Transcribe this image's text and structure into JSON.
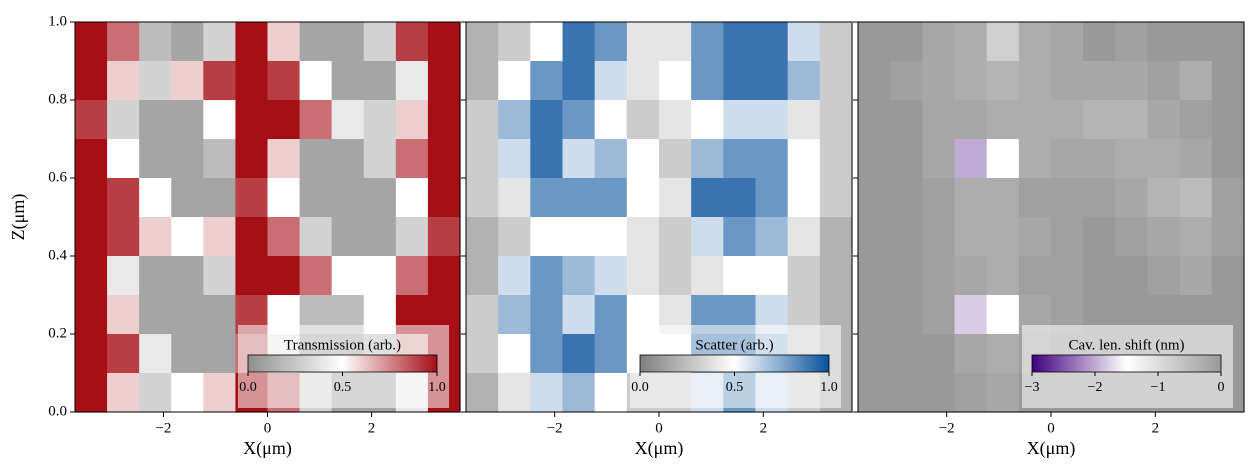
{
  "chart_data": [
    {
      "type": "heatmap",
      "xlabel": "X(μm)",
      "ylabel": "Z(μm)",
      "xlim": [
        -3.7,
        3.7
      ],
      "ylim": [
        0,
        1
      ],
      "xticks": [
        {
          "value": -2,
          "label": "−2"
        },
        0,
        2
      ],
      "yticks": [
        {
          "value": 0,
          "label": "0.0"
        },
        {
          "value": 0.2,
          "label": "0.2"
        },
        {
          "value": 0.4,
          "label": "0.4"
        },
        {
          "value": 0.6,
          "label": "0.6"
        },
        {
          "value": 0.8,
          "label": "0.8"
        },
        {
          "value": 1,
          "label": "1.0"
        }
      ],
      "cmap": [
        "#8f8f8f",
        "#ffffff",
        "#a50f15"
      ],
      "colorbar": {
        "label": "Transmission (arb.)",
        "clim": [
          0,
          1
        ],
        "ticks": [
          {
            "value": 0,
            "label": "0.0"
          },
          0.5,
          {
            "value": 1,
            "label": "1.0"
          }
        ]
      },
      "z": [
        [
          1,
          0.8,
          0.2,
          0.1,
          0.3,
          1,
          0.6,
          0.1,
          0.1,
          0.3,
          0.9,
          1
        ],
        [
          1,
          0.6,
          0.3,
          0.6,
          0.9,
          1,
          0.9,
          0.5,
          0.1,
          0.1,
          0.4,
          1
        ],
        [
          0.9,
          0.3,
          0.1,
          0.1,
          0.5,
          1,
          1,
          0.8,
          0.4,
          0.3,
          0.6,
          1
        ],
        [
          1,
          0.5,
          0.1,
          0.1,
          0.2,
          1,
          0.6,
          0.1,
          0.1,
          0.3,
          0.8,
          1
        ],
        [
          1,
          0.9,
          0.5,
          0.1,
          0.1,
          0.9,
          0.5,
          0.1,
          0.1,
          0.1,
          0.5,
          1
        ],
        [
          1,
          0.9,
          0.6,
          0.5,
          0.6,
          1,
          0.8,
          0.3,
          0.1,
          0.1,
          0.3,
          0.9
        ],
        [
          1,
          0.4,
          0.1,
          0.1,
          0.3,
          1,
          1,
          0.8,
          0.5,
          0.5,
          0.8,
          1
        ],
        [
          1,
          0.6,
          0.1,
          0.1,
          0.1,
          0.9,
          0.5,
          0.2,
          0.2,
          0.5,
          1,
          1
        ],
        [
          1,
          0.9,
          0.4,
          0.1,
          0.1,
          0.8,
          0.4,
          0.1,
          0.1,
          0.2,
          0.7,
          1
        ],
        [
          1,
          0.6,
          0.3,
          0.5,
          0.6,
          1,
          0.8,
          0.3,
          0.1,
          0.1,
          0.4,
          1
        ]
      ]
    },
    {
      "type": "heatmap",
      "xlabel": "X(μm)",
      "xlim": [
        -3.7,
        3.7
      ],
      "ylim": [
        0,
        1
      ],
      "xticks": [
        {
          "value": -2,
          "label": "−2"
        },
        0,
        2
      ],
      "yticks": [
        0,
        0.2,
        0.4,
        0.6,
        0.8,
        1
      ],
      "cmap": [
        "#7f7f7f",
        "#ffffff",
        "#08519c"
      ],
      "colorbar": {
        "label": "Scatter (arb.)",
        "clim": [
          0,
          1
        ],
        "ticks": [
          {
            "value": 0,
            "label": "0.0"
          },
          0.5,
          {
            "value": 1,
            "label": "1.0"
          }
        ]
      },
      "z": [
        [
          0.2,
          0.3,
          0.5,
          0.9,
          0.8,
          0.4,
          0.4,
          0.8,
          0.9,
          0.9,
          0.6,
          0.3
        ],
        [
          0.2,
          0.5,
          0.8,
          0.9,
          0.6,
          0.4,
          0.5,
          0.8,
          0.9,
          0.9,
          0.7,
          0.3
        ],
        [
          0.3,
          0.7,
          0.9,
          0.8,
          0.5,
          0.3,
          0.4,
          0.5,
          0.6,
          0.6,
          0.4,
          0.3
        ],
        [
          0.3,
          0.6,
          0.9,
          0.6,
          0.7,
          0.5,
          0.3,
          0.7,
          0.8,
          0.8,
          0.5,
          0.3
        ],
        [
          0.3,
          0.4,
          0.8,
          0.8,
          0.8,
          0.5,
          0.4,
          0.9,
          0.9,
          0.8,
          0.5,
          0.3
        ],
        [
          0.2,
          0.3,
          0.5,
          0.5,
          0.5,
          0.4,
          0.3,
          0.6,
          0.8,
          0.7,
          0.4,
          0.2
        ],
        [
          0.2,
          0.6,
          0.8,
          0.7,
          0.6,
          0.4,
          0.3,
          0.4,
          0.5,
          0.5,
          0.3,
          0.2
        ],
        [
          0.3,
          0.7,
          0.8,
          0.6,
          0.8,
          0.5,
          0.4,
          0.8,
          0.8,
          0.6,
          0.3,
          0.2
        ],
        [
          0.3,
          0.5,
          0.8,
          0.9,
          0.8,
          0.5,
          0.5,
          0.9,
          0.9,
          0.7,
          0.3,
          0.2
        ],
        [
          0.2,
          0.4,
          0.6,
          0.7,
          0.5,
          0.3,
          0.3,
          0.6,
          0.8,
          0.6,
          0.3,
          0.2
        ]
      ]
    },
    {
      "type": "heatmap",
      "xlabel": "X(μm)",
      "xlim": [
        -3.7,
        3.7
      ],
      "ylim": [
        0,
        1
      ],
      "xticks": [
        {
          "value": -2,
          "label": "−2"
        },
        0,
        2
      ],
      "yticks": [
        0,
        0.2,
        0.4,
        0.6,
        0.8,
        1
      ],
      "cmap": [
        "#3f007d",
        "#ffffff",
        "#999999"
      ],
      "colorbar": {
        "label": "Cav. len. shift (nm)",
        "clim": [
          -3,
          0
        ],
        "ticks": [
          {
            "value": -3,
            "label": "−3"
          },
          {
            "value": -2,
            "label": "−2"
          },
          {
            "value": -1,
            "label": "−1"
          },
          0
        ]
      },
      "z": [
        [
          0,
          0,
          -0.2,
          -0.3,
          -0.8,
          -0.3,
          -0.2,
          0,
          -0.1,
          0,
          0,
          0
        ],
        [
          0,
          -0.1,
          -0.2,
          -0.3,
          -0.4,
          -0.3,
          -0.2,
          -0.2,
          -0.2,
          -0.1,
          -0.3,
          0
        ],
        [
          0,
          0,
          -0.2,
          -0.2,
          -0.3,
          -0.3,
          -0.3,
          -0.4,
          -0.4,
          -0.2,
          -0.1,
          0
        ],
        [
          0,
          0,
          -0.2,
          -2,
          -1.5,
          -0.3,
          -0.2,
          -0.2,
          -0.3,
          -0.3,
          -0.2,
          0
        ],
        [
          0,
          0,
          -0.1,
          -0.3,
          -0.3,
          -0.1,
          -0.1,
          -0.1,
          -0.2,
          -0.4,
          -0.5,
          -0.1
        ],
        [
          0,
          0,
          -0.1,
          -0.3,
          -0.3,
          -0.2,
          -0.1,
          0,
          -0.1,
          -0.2,
          -0.3,
          -0.1
        ],
        [
          0,
          0,
          -0.1,
          -0.2,
          -0.3,
          -0.1,
          -0.1,
          0,
          0,
          -0.1,
          -0.2,
          0
        ],
        [
          0,
          0,
          -0.1,
          -1.8,
          -1.5,
          -0.2,
          -0.1,
          0,
          0,
          0,
          0,
          0
        ],
        [
          0,
          0,
          0,
          -0.2,
          -0.3,
          -0.1,
          0,
          0,
          0,
          0,
          0,
          0
        ],
        [
          0,
          0,
          0,
          -0.1,
          -0.2,
          0,
          0,
          0,
          0,
          0,
          0,
          0
        ]
      ]
    }
  ]
}
